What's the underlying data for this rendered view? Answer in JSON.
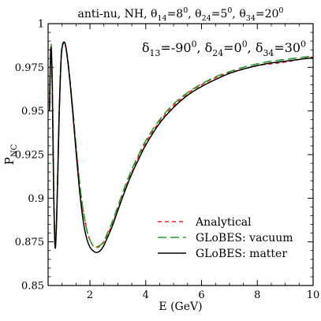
{
  "chart_data": {
    "type": "line",
    "title": "anti-nu, NH, θ14=8⁰, θ24=5⁰, θ34=20⁰",
    "title_parts": [
      {
        "t": "anti-nu, NH, "
      },
      {
        "t": "θ"
      },
      {
        "sub": "14"
      },
      {
        "t": "=8"
      },
      {
        "sup": "0"
      },
      {
        "t": ", "
      },
      {
        "t": "θ"
      },
      {
        "sub": "24"
      },
      {
        "t": "=5"
      },
      {
        "sup": "0"
      },
      {
        "t": ", "
      },
      {
        "t": "θ"
      },
      {
        "sub": "34"
      },
      {
        "t": "=20"
      },
      {
        "sup": "0"
      }
    ],
    "annotation": "δ13=-90⁰, δ24=0⁰, δ34=30⁰",
    "annotation_parts": [
      {
        "t": "δ"
      },
      {
        "sub": "13"
      },
      {
        "t": "=-90"
      },
      {
        "sup": "0"
      },
      {
        "t": ", "
      },
      {
        "t": "δ"
      },
      {
        "sub": "24"
      },
      {
        "t": "=0"
      },
      {
        "sup": "0"
      },
      {
        "t": ", "
      },
      {
        "t": "δ"
      },
      {
        "sub": "34"
      },
      {
        "t": "=30"
      },
      {
        "sup": "0"
      }
    ],
    "xlabel": "E (GeV)",
    "ylabel": "P_NC",
    "ylabel_main": "P",
    "ylabel_sub": "NC",
    "xlim": [
      0.5,
      10
    ],
    "ylim": [
      0.85,
      1.0
    ],
    "xticks": [
      2,
      4,
      6,
      8,
      10
    ],
    "xtick_labels": [
      "2",
      "4",
      "6",
      "8",
      "10"
    ],
    "yticks": [
      0.85,
      0.875,
      0.9,
      0.925,
      0.95,
      0.975,
      1.0
    ],
    "ytick_labels": [
      "0.85",
      "0.875",
      "0.9",
      "0.925",
      "0.95",
      "0.975",
      "1"
    ],
    "legend_position": "bottom-right",
    "series": [
      {
        "name": "Analytical",
        "color": "#ff2020",
        "dash": "short",
        "x": [
          0.55,
          0.6,
          0.65,
          0.7,
          0.75,
          0.8,
          0.85,
          0.9,
          0.95,
          1.0,
          1.1,
          1.2,
          1.3,
          1.4,
          1.5,
          1.6,
          1.7,
          1.8,
          1.9,
          2.0,
          2.1,
          2.2,
          2.3,
          2.4,
          2.5,
          2.6,
          2.8,
          3.0,
          3.25,
          3.5,
          3.75,
          4.0,
          4.5,
          5.0,
          5.5,
          6.0,
          6.5,
          7.0,
          7.5,
          8.0,
          8.5,
          9.0,
          9.5,
          10.0
        ],
        "y": [
          0.952,
          0.988,
          0.965,
          0.905,
          0.873,
          0.886,
          0.917,
          0.951,
          0.975,
          0.987,
          0.989,
          0.98,
          0.965,
          0.948,
          0.93,
          0.913,
          0.899,
          0.889,
          0.881,
          0.876,
          0.873,
          0.872,
          0.872,
          0.873,
          0.875,
          0.878,
          0.885,
          0.894,
          0.905,
          0.915,
          0.924,
          0.932,
          0.944,
          0.953,
          0.96,
          0.965,
          0.969,
          0.972,
          0.974,
          0.976,
          0.977,
          0.978,
          0.9795,
          0.981
        ]
      },
      {
        "name": "GLoBES: vacuum",
        "color": "#2a9d2a",
        "dash": "long",
        "x": [
          0.55,
          0.6,
          0.65,
          0.7,
          0.75,
          0.8,
          0.85,
          0.9,
          0.95,
          1.0,
          1.1,
          1.2,
          1.3,
          1.4,
          1.5,
          1.6,
          1.7,
          1.8,
          1.9,
          2.0,
          2.1,
          2.2,
          2.3,
          2.4,
          2.5,
          2.6,
          2.8,
          3.0,
          3.25,
          3.5,
          3.75,
          4.0,
          4.5,
          5.0,
          5.5,
          6.0,
          6.5,
          7.0,
          7.5,
          8.0,
          8.5,
          9.0,
          9.5,
          10.0
        ],
        "y": [
          0.952,
          0.988,
          0.965,
          0.905,
          0.873,
          0.886,
          0.917,
          0.951,
          0.975,
          0.987,
          0.989,
          0.98,
          0.965,
          0.948,
          0.93,
          0.913,
          0.899,
          0.889,
          0.881,
          0.876,
          0.873,
          0.872,
          0.8725,
          0.8735,
          0.8755,
          0.879,
          0.8865,
          0.8955,
          0.9065,
          0.9165,
          0.925,
          0.933,
          0.945,
          0.954,
          0.9605,
          0.9655,
          0.9695,
          0.9725,
          0.975,
          0.977,
          0.9785,
          0.9795,
          0.9805,
          0.9815
        ]
      },
      {
        "name": "GLoBES: matter",
        "color": "#000000",
        "dash": "solid",
        "x": [
          0.55,
          0.6,
          0.65,
          0.7,
          0.75,
          0.8,
          0.85,
          0.9,
          0.95,
          1.0,
          1.1,
          1.2,
          1.3,
          1.4,
          1.5,
          1.6,
          1.7,
          1.8,
          1.9,
          2.0,
          2.1,
          2.2,
          2.3,
          2.4,
          2.5,
          2.6,
          2.8,
          3.0,
          3.25,
          3.5,
          3.75,
          4.0,
          4.5,
          5.0,
          5.5,
          6.0,
          6.5,
          7.0,
          7.5,
          8.0,
          8.5,
          9.0,
          9.5,
          10.0
        ],
        "y": [
          0.95,
          0.986,
          0.963,
          0.904,
          0.872,
          0.885,
          0.916,
          0.95,
          0.974,
          0.986,
          0.989,
          0.979,
          0.964,
          0.946,
          0.927,
          0.909,
          0.894,
          0.883,
          0.876,
          0.872,
          0.87,
          0.869,
          0.8692,
          0.8705,
          0.873,
          0.8765,
          0.884,
          0.893,
          0.904,
          0.914,
          0.9225,
          0.9305,
          0.943,
          0.952,
          0.959,
          0.964,
          0.968,
          0.9715,
          0.974,
          0.976,
          0.9775,
          0.9785,
          0.9795,
          0.9805
        ]
      }
    ]
  }
}
